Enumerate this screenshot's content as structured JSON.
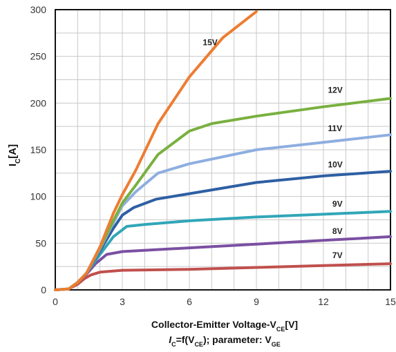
{
  "chart_data": {
    "type": "line",
    "ylabel": {
      "main": "I",
      "sub": "C",
      "suffix": "[A]"
    },
    "xlabel": {
      "main": "Collector-Emitter Voltage-V",
      "sub": "CE",
      "suffix": "[V]"
    },
    "caption": {
      "main": "I",
      "sub1": "C",
      "mid": "=f(V",
      "sub2": "CE",
      "tail": "); parameter: V",
      "sub3": "GE"
    },
    "xlim": [
      0,
      15
    ],
    "ylim": [
      0,
      300
    ],
    "x_ticks": [
      "0",
      "3",
      "6",
      "9",
      "12",
      "15"
    ],
    "y_ticks": [
      "0",
      "50",
      "100",
      "150",
      "200",
      "250",
      "300"
    ],
    "grid": true,
    "series": [
      {
        "name": "7V",
        "color": "#c0504d",
        "points": [
          [
            0,
            0
          ],
          [
            0.6,
            1
          ],
          [
            1.0,
            6
          ],
          [
            1.3,
            12
          ],
          [
            1.6,
            16
          ],
          [
            2.0,
            19
          ],
          [
            3,
            21
          ],
          [
            6,
            22
          ],
          [
            9,
            24
          ],
          [
            12,
            26
          ],
          [
            15,
            28
          ]
        ]
      },
      {
        "name": "8V",
        "color": "#7b4fa2",
        "points": [
          [
            0,
            0
          ],
          [
            0.6,
            1
          ],
          [
            1.0,
            8
          ],
          [
            1.4,
            17
          ],
          [
            1.8,
            28
          ],
          [
            2.3,
            38
          ],
          [
            3,
            41
          ],
          [
            6,
            45
          ],
          [
            9,
            49
          ],
          [
            12,
            53
          ],
          [
            15,
            57
          ]
        ]
      },
      {
        "name": "9V",
        "color": "#31a6b8",
        "points": [
          [
            0,
            0
          ],
          [
            0.6,
            1
          ],
          [
            1.0,
            8
          ],
          [
            1.4,
            18
          ],
          [
            2.0,
            38
          ],
          [
            2.6,
            57
          ],
          [
            3.2,
            68
          ],
          [
            4,
            70
          ],
          [
            6,
            74
          ],
          [
            9,
            78
          ],
          [
            12,
            81
          ],
          [
            15,
            84
          ]
        ]
      },
      {
        "name": "10V",
        "color": "#2e5fa3",
        "points": [
          [
            0,
            0
          ],
          [
            0.6,
            1
          ],
          [
            1.0,
            8
          ],
          [
            1.4,
            18
          ],
          [
            2.0,
            42
          ],
          [
            2.6,
            66
          ],
          [
            3.0,
            80
          ],
          [
            3.5,
            88
          ],
          [
            4.5,
            97
          ],
          [
            6,
            103
          ],
          [
            9,
            115
          ],
          [
            12,
            122
          ],
          [
            15,
            127
          ]
        ]
      },
      {
        "name": "11V",
        "color": "#8eaee0",
        "points": [
          [
            0,
            0
          ],
          [
            0.6,
            1
          ],
          [
            1.0,
            8
          ],
          [
            1.4,
            18
          ],
          [
            2.0,
            44
          ],
          [
            2.6,
            72
          ],
          [
            3.0,
            90
          ],
          [
            3.6,
            105
          ],
          [
            4.6,
            125
          ],
          [
            6,
            135
          ],
          [
            9,
            150
          ],
          [
            12,
            158
          ],
          [
            15,
            166
          ]
        ]
      },
      {
        "name": "12V",
        "color": "#79b040",
        "points": [
          [
            0,
            0
          ],
          [
            0.6,
            1
          ],
          [
            1.0,
            8
          ],
          [
            1.4,
            18
          ],
          [
            2.0,
            45
          ],
          [
            2.6,
            74
          ],
          [
            3.0,
            93
          ],
          [
            3.6,
            112
          ],
          [
            4.6,
            145
          ],
          [
            6,
            170
          ],
          [
            7,
            178
          ],
          [
            9,
            186
          ],
          [
            12,
            196
          ],
          [
            15,
            205
          ]
        ]
      },
      {
        "name": "15V",
        "color": "#ed7d31",
        "points": [
          [
            0,
            0
          ],
          [
            0.6,
            1
          ],
          [
            1.0,
            8
          ],
          [
            1.4,
            18
          ],
          [
            2.0,
            46
          ],
          [
            2.6,
            82
          ],
          [
            3.0,
            102
          ],
          [
            3.6,
            128
          ],
          [
            4.6,
            178
          ],
          [
            6,
            228
          ],
          [
            7.5,
            270
          ],
          [
            9,
            298
          ]
        ]
      }
    ]
  },
  "series_labels": [
    {
      "text": "15V",
      "x": 6.6,
      "y": 262
    },
    {
      "text": "12V",
      "x": 12.2,
      "y": 211
    },
    {
      "text": "11V",
      "x": 12.2,
      "y": 170
    },
    {
      "text": "10V",
      "x": 12.2,
      "y": 131
    },
    {
      "text": "9V",
      "x": 12.4,
      "y": 89
    },
    {
      "text": "8V",
      "x": 12.4,
      "y": 60
    },
    {
      "text": "7V",
      "x": 12.4,
      "y": 34
    }
  ]
}
